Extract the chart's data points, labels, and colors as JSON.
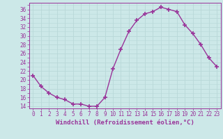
{
  "x": [
    0,
    1,
    2,
    3,
    4,
    5,
    6,
    7,
    8,
    9,
    10,
    11,
    12,
    13,
    14,
    15,
    16,
    17,
    18,
    19,
    20,
    21,
    22,
    23
  ],
  "y": [
    21,
    18.5,
    17,
    16,
    15.5,
    14.5,
    14.5,
    14,
    14,
    16,
    22.5,
    27,
    31,
    33.5,
    35,
    35.5,
    36.5,
    36,
    35.5,
    32.5,
    30.5,
    28,
    25,
    23
  ],
  "line_color": "#993399",
  "marker": "+",
  "bg_color": "#cce8e8",
  "grid_color": "#b0d8d8",
  "xlabel": "Windchill (Refroidissement éolien,°C)",
  "ylim": [
    13.5,
    37.5
  ],
  "yticks": [
    14,
    16,
    18,
    20,
    22,
    24,
    26,
    28,
    30,
    32,
    34,
    36
  ],
  "xlim": [
    -0.5,
    23.5
  ],
  "xticks": [
    0,
    1,
    2,
    3,
    4,
    5,
    6,
    7,
    8,
    9,
    10,
    11,
    12,
    13,
    14,
    15,
    16,
    17,
    18,
    19,
    20,
    21,
    22,
    23
  ],
  "xlabel_color": "#993399",
  "tick_color": "#993399",
  "spine_color": "#993399",
  "axis_label_fontsize": 6.5,
  "tick_fontsize": 5.5,
  "linewidth": 1.0,
  "markersize": 4,
  "markeredgewidth": 1.2
}
